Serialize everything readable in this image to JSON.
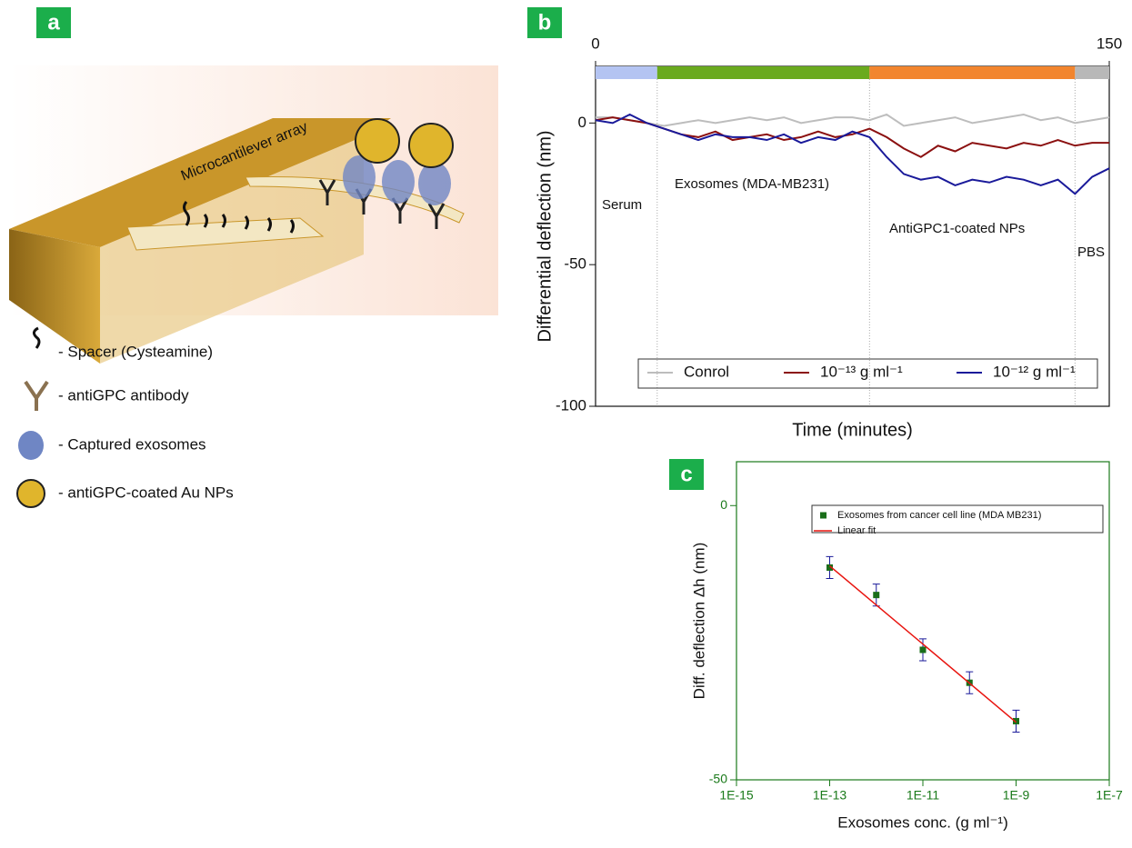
{
  "diagram": {
    "panel_label": "a",
    "cantilever_label": "Microcantilever array",
    "legend": [
      "- Spacer (Cysteamine)",
      "- antiGPC antibody",
      "- Captured exosomes",
      "- antiGPC-coated Au NPs"
    ]
  },
  "chart_data": [
    {
      "type": "line",
      "panel_label": "b",
      "xlabel": "Time (minutes)",
      "ylabel": "Differential deflection (nm)",
      "xlim": [
        0,
        150
      ],
      "xticks": [
        0,
        150
      ],
      "ylim": [
        -100,
        20
      ],
      "yticks": [
        0,
        -50,
        -100
      ],
      "phases": [
        {
          "label": "Serum",
          "start": 0,
          "end": 18,
          "color": "#b4c4f2"
        },
        {
          "label": "Exosomes (MDA-MB231)",
          "start": 18,
          "end": 80,
          "color": "#6aaa1e"
        },
        {
          "label": "AntiGPC1-coated NPs",
          "start": 80,
          "end": 140,
          "color": "#f2852e"
        },
        {
          "label": "PBS",
          "start": 140,
          "end": 150,
          "color": "#b8b8b8"
        }
      ],
      "x": [
        0,
        5,
        10,
        15,
        20,
        25,
        30,
        35,
        40,
        45,
        50,
        55,
        60,
        65,
        70,
        75,
        80,
        85,
        90,
        95,
        100,
        105,
        110,
        115,
        120,
        125,
        130,
        135,
        140,
        145,
        150
      ],
      "series": [
        {
          "name": "Conrol",
          "color": "#bdbdbd",
          "values": [
            2,
            2,
            1,
            0,
            -1,
            0,
            1,
            0,
            1,
            2,
            1,
            2,
            0,
            1,
            2,
            2,
            1,
            3,
            -1,
            0,
            1,
            2,
            0,
            1,
            2,
            3,
            1,
            2,
            0,
            1,
            2
          ]
        },
        {
          "name": "10⁻¹³ g ml⁻¹",
          "color": "#8b1010",
          "values": [
            1,
            2,
            1,
            0,
            -2,
            -4,
            -5,
            -3,
            -6,
            -5,
            -4,
            -6,
            -5,
            -3,
            -5,
            -4,
            -2,
            -5,
            -9,
            -12,
            -8,
            -10,
            -7,
            -8,
            -9,
            -7,
            -8,
            -6,
            -8,
            -7,
            -7
          ]
        },
        {
          "name": "10⁻¹² g ml⁻¹",
          "color": "#1a1a9a",
          "values": [
            1,
            0,
            3,
            0,
            -2,
            -4,
            -6,
            -4,
            -5,
            -5,
            -6,
            -4,
            -7,
            -5,
            -6,
            -3,
            -5,
            -12,
            -18,
            -20,
            -19,
            -22,
            -20,
            -21,
            -19,
            -20,
            -22,
            -20,
            -25,
            -19,
            -16
          ]
        }
      ]
    },
    {
      "type": "scatter",
      "panel_label": "c",
      "xlabel": "Exosomes conc. (g ml⁻¹)",
      "ylabel": "Diff. deflection Δh (nm)",
      "xscale": "log",
      "xlim": [
        1e-15,
        1e-07
      ],
      "xticks": [
        {
          "value": 1e-15,
          "label": "1E-15"
        },
        {
          "value": 1e-13,
          "label": "1E-13"
        },
        {
          "value": 1e-11,
          "label": "1E-11"
        },
        {
          "value": 1e-09,
          "label": "1E-9"
        },
        {
          "value": 1e-07,
          "label": "1E-7"
        }
      ],
      "ylim": [
        -50,
        8
      ],
      "yticks": [
        0,
        -50
      ],
      "axis_color": "#1a7a1a",
      "x": [
        1e-13,
        1e-12,
        1e-11,
        1e-10,
        1e-09
      ],
      "series": [
        {
          "name": "Exosomes from cancer cell line (MDA MB231)",
          "color": "#1a6e1a",
          "error_color": "#1a1a9a",
          "values": [
            -11.3,
            -16.3,
            -26.3,
            -32.3,
            -39.3
          ],
          "errors": [
            2,
            2,
            2,
            2,
            2
          ]
        },
        {
          "name": "Linear fit",
          "color": "#e8140f",
          "x": [
            1e-13,
            1e-09
          ],
          "values": [
            -11,
            -39.5
          ]
        }
      ]
    }
  ]
}
